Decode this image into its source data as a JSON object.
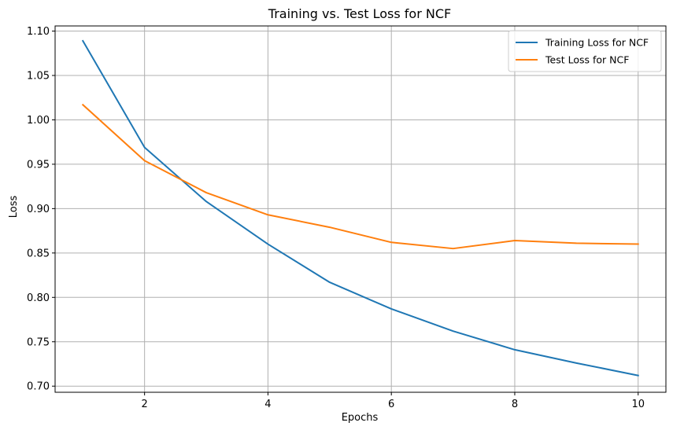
{
  "chart_data": {
    "type": "line",
    "title": "Training vs. Test Loss for NCF",
    "xlabel": "Epochs",
    "ylabel": "Loss",
    "x": [
      1,
      2,
      3,
      4,
      5,
      6,
      7,
      8,
      9,
      10
    ],
    "xlim": [
      0.55,
      10.45
    ],
    "ylim": [
      0.6931,
      1.1058
    ],
    "xticks": [
      2,
      4,
      6,
      8,
      10
    ],
    "xtick_labels": [
      "2",
      "4",
      "6",
      "8",
      "10"
    ],
    "yticks": [
      0.7,
      0.75,
      0.8,
      0.85,
      0.9,
      0.95,
      1.0,
      1.05,
      1.1
    ],
    "ytick_labels": [
      "0.70",
      "0.75",
      "0.80",
      "0.85",
      "0.90",
      "0.95",
      "1.00",
      "1.05",
      "1.10"
    ],
    "grid": true,
    "legend_position": "top-right",
    "series": [
      {
        "name": "Training Loss for NCF",
        "color": "#1f77b4",
        "values": [
          1.089,
          0.969,
          0.908,
          0.86,
          0.817,
          0.787,
          0.762,
          0.741,
          0.726,
          0.712
        ]
      },
      {
        "name": "Test Loss for NCF",
        "color": "#ff7f0e",
        "values": [
          1.017,
          0.954,
          0.918,
          0.893,
          0.879,
          0.862,
          0.855,
          0.864,
          0.861,
          0.86
        ]
      }
    ]
  }
}
